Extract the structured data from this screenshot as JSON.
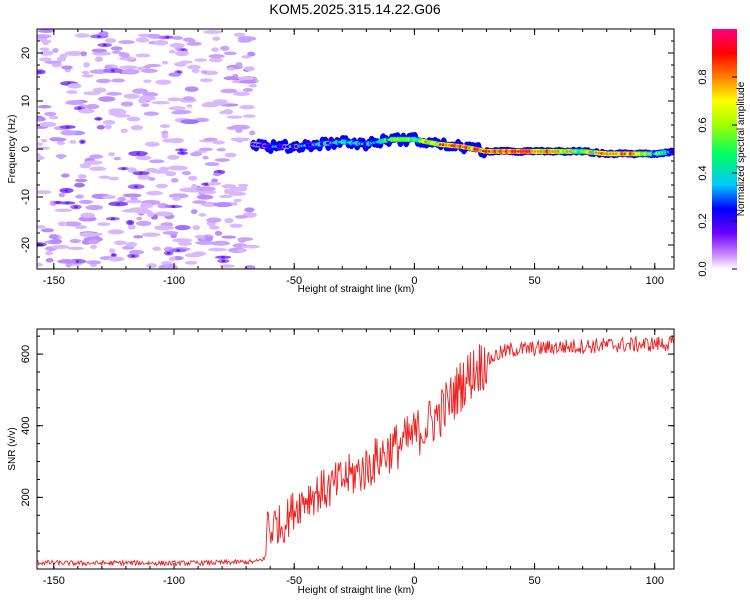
{
  "title": "KOM5.2025.315.14.22.G06",
  "chart_data": [
    {
      "type": "heatmap",
      "name": "spectrogram",
      "xlabel": "Height of straight line (km)",
      "ylabel": "Frequency (Hz)",
      "xlim": [
        -157,
        108
      ],
      "ylim": [
        -25,
        25
      ],
      "xticks": [
        -150,
        -100,
        -50,
        0,
        50,
        100
      ],
      "xtick_labels": [
        "-150",
        "-100",
        "-50",
        "0",
        "50",
        "100"
      ],
      "yticks": [
        -20,
        -10,
        0,
        10,
        20
      ],
      "ytick_labels": [
        "-20",
        "-10",
        "0",
        "10",
        "20"
      ],
      "colorbar": {
        "label": "Normalized spectral amplitude",
        "range": [
          0,
          1
        ],
        "ticks": [
          0.0,
          0.2,
          0.4,
          0.6,
          0.8
        ],
        "tick_labels": [
          "0.0",
          "0.2",
          "0.4",
          "0.6",
          "0.8"
        ],
        "colormap": [
          "#ffffff",
          "#cc88ff",
          "#6a00ff",
          "#0000ff",
          "#00c8ff",
          "#00ff60",
          "#a0ff00",
          "#ffff00",
          "#ff8000",
          "#ff0000",
          "#ff0080"
        ]
      },
      "noise_region_km": [
        -157,
        -67
      ],
      "signal_track": {
        "height_km": [
          -67,
          -60,
          -50,
          -40,
          -30,
          -20,
          -10,
          0,
          10,
          20,
          30,
          40,
          50,
          60,
          70,
          80,
          90,
          100,
          108
        ],
        "frequency_hz": [
          1.0,
          0.5,
          0.5,
          1.0,
          1.5,
          1.0,
          2.0,
          2.0,
          1.0,
          0.5,
          -0.5,
          -0.5,
          -0.5,
          -0.5,
          -0.5,
          -1.0,
          -1.0,
          -1.0,
          -0.5
        ],
        "amplitude": [
          0.2,
          0.3,
          0.35,
          0.4,
          0.45,
          0.45,
          0.55,
          0.6,
          0.8,
          0.9,
          0.95,
          0.95,
          0.95,
          0.9,
          0.6,
          0.85,
          0.9,
          0.55,
          0.4
        ]
      }
    },
    {
      "type": "line",
      "name": "snr",
      "xlabel": "Height of straight line (km)",
      "ylabel": "SNR (v/v)",
      "xlim": [
        -157,
        108
      ],
      "ylim": [
        0,
        670
      ],
      "xticks": [
        -150,
        -100,
        -50,
        0,
        50,
        100
      ],
      "xtick_labels": [
        "-150",
        "-100",
        "-50",
        "0",
        "50",
        "100"
      ],
      "yticks": [
        200,
        400,
        600
      ],
      "ytick_labels": [
        "200",
        "400",
        "600"
      ],
      "color": "#ee2020",
      "x": [
        -157,
        -140,
        -120,
        -100,
        -80,
        -66,
        -62,
        -61,
        -60,
        -58,
        -55,
        -50,
        -45,
        -40,
        -35,
        -30,
        -25,
        -20,
        -15,
        -10,
        -5,
        0,
        5,
        10,
        15,
        20,
        25,
        30,
        35,
        40,
        50,
        60,
        70,
        80,
        90,
        100,
        108
      ],
      "y": [
        18,
        16,
        17,
        16,
        18,
        20,
        30,
        160,
        100,
        130,
        120,
        170,
        200,
        215,
        225,
        250,
        265,
        280,
        310,
        335,
        350,
        375,
        400,
        430,
        470,
        520,
        555,
        580,
        600,
        612,
        615,
        620,
        622,
        625,
        626,
        628,
        630
      ]
    }
  ]
}
